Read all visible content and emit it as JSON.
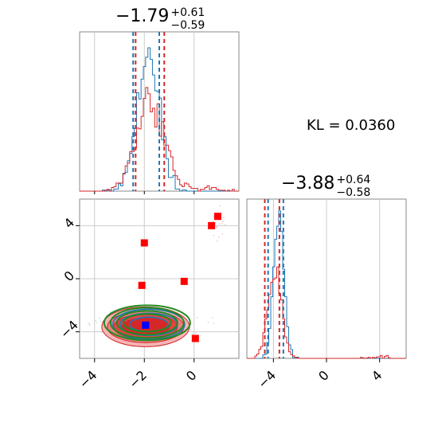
{
  "chart_data": {
    "type": "corner",
    "kl_text": "KL = 0.0360",
    "panels": {
      "hist_x": {
        "title": {
          "value": "−1.79",
          "plus": "+0.61",
          "minus": "−0.59"
        },
        "xlim": [
          -4.6,
          1.8
        ],
        "quantile_lines": {
          "blue": [
            -2.45,
            -1.4
          ],
          "red": [
            -2.35,
            -1.2
          ]
        }
      },
      "hist_y": {
        "title": {
          "value": "−3.88",
          "plus": "+0.64",
          "minus": "−0.58"
        },
        "xlim": [
          -6.0,
          6.0
        ],
        "xticks": [
          -4,
          0,
          4
        ],
        "xtick_labels": [
          "−4",
          "0",
          "4"
        ],
        "quantile_lines": {
          "blue": [
            -4.4,
            -3.25
          ],
          "red": [
            -4.65,
            -3.55
          ]
        }
      },
      "scatter": {
        "xlim": [
          -4.6,
          1.8
        ],
        "ylim": [
          -6.0,
          6.0
        ],
        "xticks": [
          -4,
          -2,
          0
        ],
        "xtick_labels": [
          "−4",
          "−2",
          "0"
        ],
        "yticks": [
          -4,
          0,
          4
        ],
        "ytick_labels": [
          "−4",
          "0",
          "4"
        ],
        "red_squares": [
          {
            "x": -2.0,
            "y": 2.7
          },
          {
            "x": -2.1,
            "y": -0.5
          },
          {
            "x": -0.4,
            "y": -0.2
          },
          {
            "x": 0.7,
            "y": 4.0
          },
          {
            "x": 0.95,
            "y": 4.7
          },
          {
            "x": 0.05,
            "y": -4.5
          }
        ],
        "blue_square": {
          "x": -1.95,
          "y": -3.5
        },
        "contour_center": {
          "x": -1.95,
          "y": -3.5
        }
      }
    },
    "colors": {
      "blue": "#1f77b4",
      "red": "#d62728",
      "green": "#228b22",
      "marker_red": "#ff0000",
      "marker_blue": "#0000ff",
      "grid": "#cccccc"
    }
  }
}
